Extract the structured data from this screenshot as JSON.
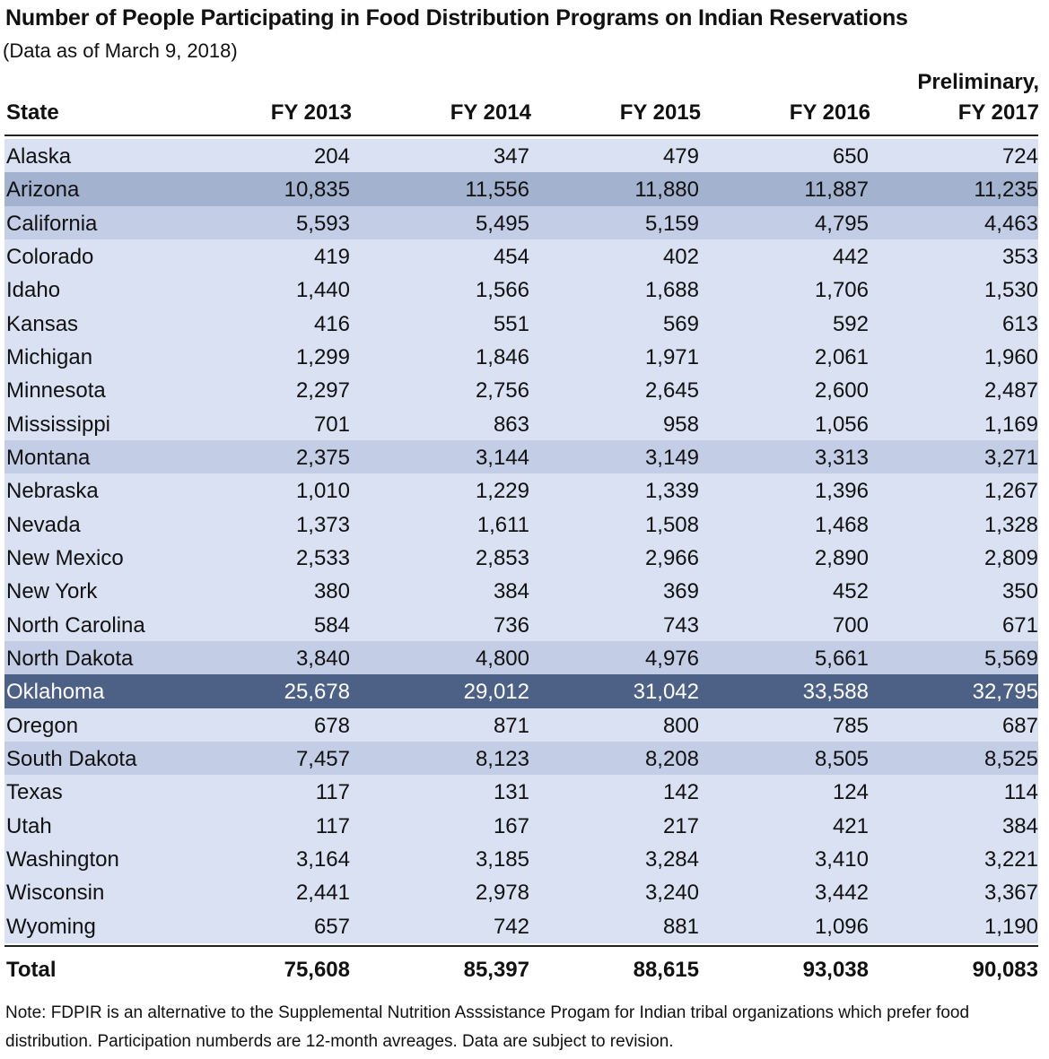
{
  "title": "Number of People Participating in Food Distribution Programs on Indian Reservations",
  "subtitle": "(Data as of March 9, 2018)",
  "note": "Note: FDPIR is an alternative to the Supplemental Nutrition Asssistance Progam for Indian tribal organizations which prefer food distribution. Participation numberds are 12-month avreages. Data are subject to revision.",
  "colors": {
    "shades": [
      "#d9e1f2",
      "#c3cde5",
      "#a3b2cf",
      "#4d6186"
    ],
    "highlight_text": "#ffffff"
  },
  "chart_data": {
    "type": "table",
    "columns": [
      "State",
      "FY 2013",
      "FY 2014",
      "FY 2015",
      "FY 2016",
      "Preliminary, FY 2017"
    ],
    "header_last_line1": "Preliminary,",
    "header_last_line2": "FY 2017",
    "rows": [
      {
        "state": "Alaska",
        "values": [
          "204",
          "347",
          "479",
          "650",
          "724"
        ],
        "shade": 0
      },
      {
        "state": "Arizona",
        "values": [
          "10,835",
          "11,556",
          "11,880",
          "11,887",
          "11,235"
        ],
        "shade": 2
      },
      {
        "state": "California",
        "values": [
          "5,593",
          "5,495",
          "5,159",
          "4,795",
          "4,463"
        ],
        "shade": 1
      },
      {
        "state": "Colorado",
        "values": [
          "419",
          "454",
          "402",
          "442",
          "353"
        ],
        "shade": 0
      },
      {
        "state": "Idaho",
        "values": [
          "1,440",
          "1,566",
          "1,688",
          "1,706",
          "1,530"
        ],
        "shade": 0
      },
      {
        "state": "Kansas",
        "values": [
          "416",
          "551",
          "569",
          "592",
          "613"
        ],
        "shade": 0
      },
      {
        "state": "Michigan",
        "values": [
          "1,299",
          "1,846",
          "1,971",
          "2,061",
          "1,960"
        ],
        "shade": 0
      },
      {
        "state": "Minnesota",
        "values": [
          "2,297",
          "2,756",
          "2,645",
          "2,600",
          "2,487"
        ],
        "shade": 0
      },
      {
        "state": "Mississippi",
        "values": [
          "701",
          "863",
          "958",
          "1,056",
          "1,169"
        ],
        "shade": 0
      },
      {
        "state": "Montana",
        "values": [
          "2,375",
          "3,144",
          "3,149",
          "3,313",
          "3,271"
        ],
        "shade": 1
      },
      {
        "state": "Nebraska",
        "values": [
          "1,010",
          "1,229",
          "1,339",
          "1,396",
          "1,267"
        ],
        "shade": 0
      },
      {
        "state": "Nevada",
        "values": [
          "1,373",
          "1,611",
          "1,508",
          "1,468",
          "1,328"
        ],
        "shade": 0
      },
      {
        "state": "New Mexico",
        "values": [
          "2,533",
          "2,853",
          "2,966",
          "2,890",
          "2,809"
        ],
        "shade": 0
      },
      {
        "state": "New York",
        "values": [
          "380",
          "384",
          "369",
          "452",
          "350"
        ],
        "shade": 0
      },
      {
        "state": "North Carolina",
        "values": [
          "584",
          "736",
          "743",
          "700",
          "671"
        ],
        "shade": 0
      },
      {
        "state": "North Dakota",
        "values": [
          "3,840",
          "4,800",
          "4,976",
          "5,661",
          "5,569"
        ],
        "shade": 1
      },
      {
        "state": "Oklahoma",
        "values": [
          "25,678",
          "29,012",
          "31,042",
          "33,588",
          "32,795"
        ],
        "shade": 3
      },
      {
        "state": "Oregon",
        "values": [
          "678",
          "871",
          "800",
          "785",
          "687"
        ],
        "shade": 0
      },
      {
        "state": "South Dakota",
        "values": [
          "7,457",
          "8,123",
          "8,208",
          "8,505",
          "8,525"
        ],
        "shade": 1
      },
      {
        "state": "Texas",
        "values": [
          "117",
          "131",
          "142",
          "124",
          "114"
        ],
        "shade": 0
      },
      {
        "state": "Utah",
        "values": [
          "117",
          "167",
          "217",
          "421",
          "384"
        ],
        "shade": 0
      },
      {
        "state": "Washington",
        "values": [
          "3,164",
          "3,185",
          "3,284",
          "3,410",
          "3,221"
        ],
        "shade": 0
      },
      {
        "state": "Wisconsin",
        "values": [
          "2,441",
          "2,978",
          "3,240",
          "3,442",
          "3,367"
        ],
        "shade": 0
      },
      {
        "state": "Wyoming",
        "values": [
          "657",
          "742",
          "881",
          "1,096",
          "1,190"
        ],
        "shade": 0
      }
    ],
    "total": {
      "label": "Total",
      "values": [
        "75,608",
        "85,397",
        "88,615",
        "93,038",
        "90,083"
      ]
    }
  }
}
